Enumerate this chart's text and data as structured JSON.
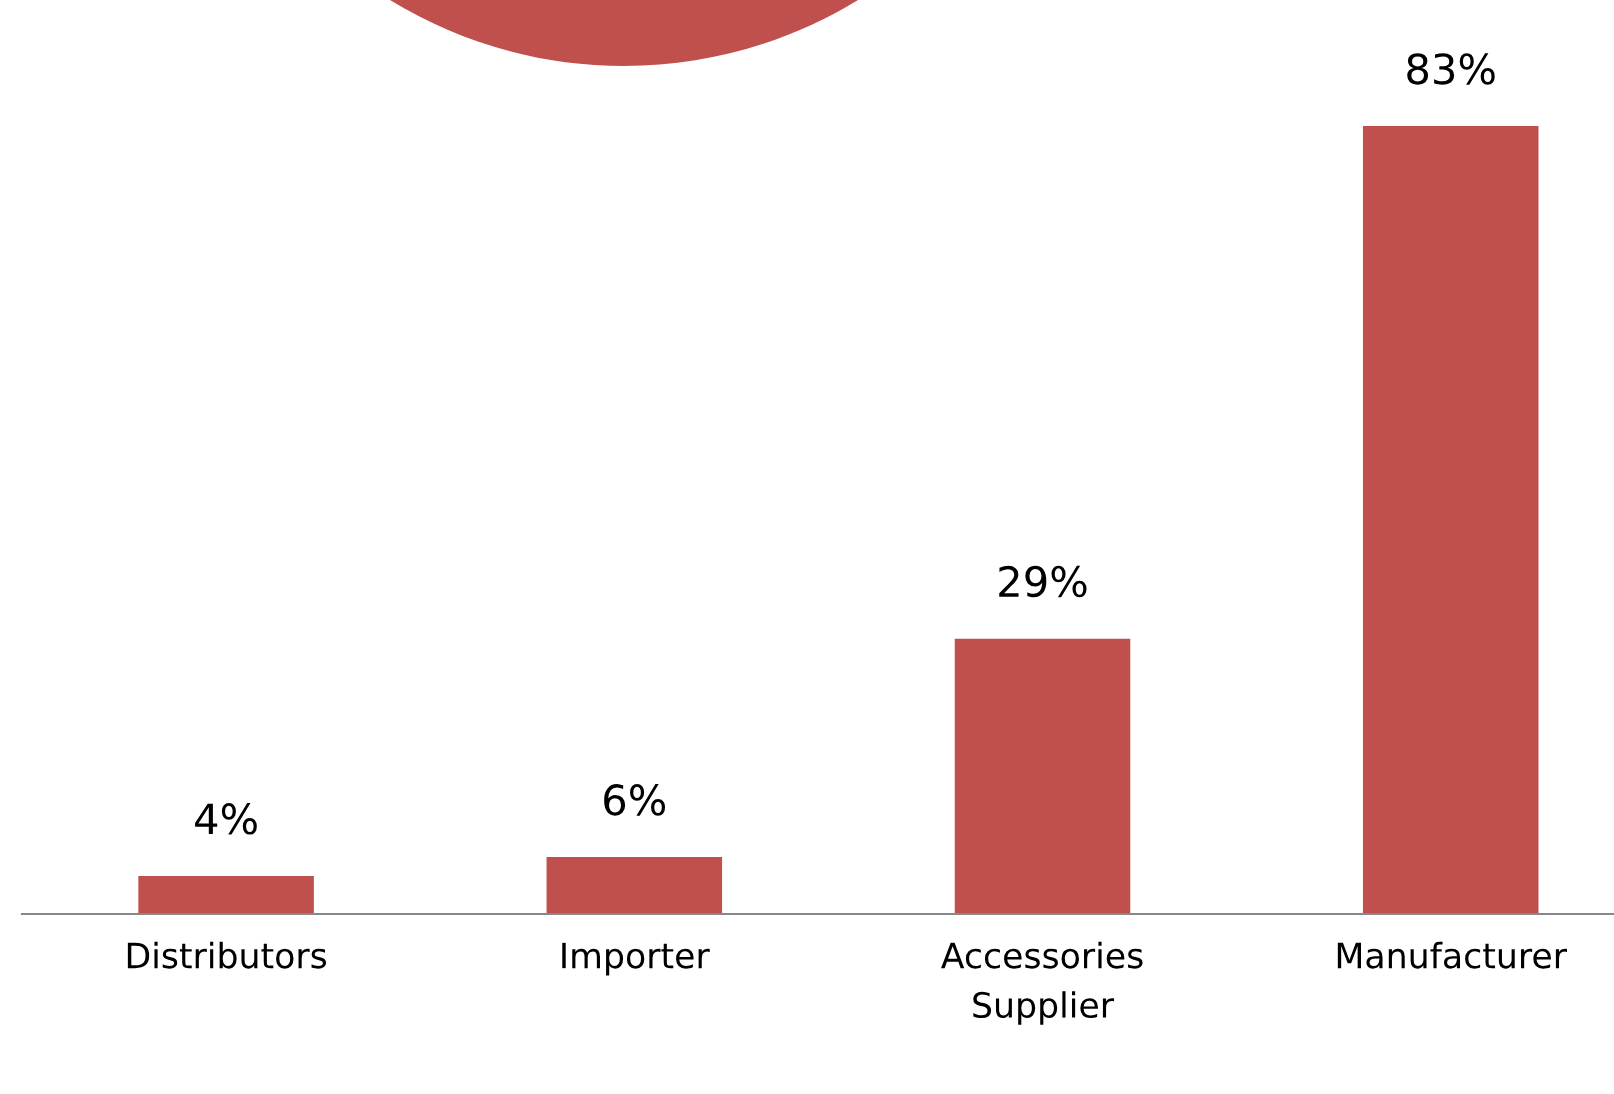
{
  "chart_data": {
    "type": "bar",
    "categories": [
      "Distributors",
      "Importer",
      "Accessories\nSupplier",
      "Manufacturer"
    ],
    "values": [
      4,
      6,
      29,
      83
    ],
    "value_labels": [
      "4%",
      "6%",
      "29%",
      "83%"
    ],
    "color": "#c0504d",
    "grid": false,
    "legend": false
  }
}
